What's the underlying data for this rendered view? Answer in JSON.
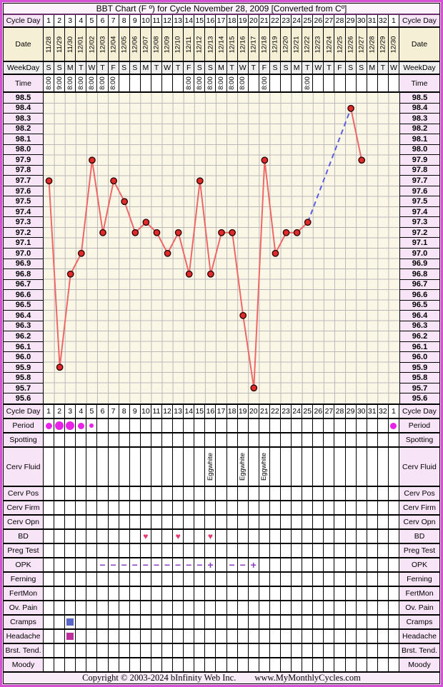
{
  "header": {
    "title": "BBT Chart (F º) for Cycle November 28, 2009  [Converted from Cº]"
  },
  "header_rows": [
    {
      "key": "cycle_day",
      "label": "Cycle Day"
    },
    {
      "key": "date",
      "label": "Date"
    },
    {
      "key": "weekday",
      "label": "WeekDay"
    },
    {
      "key": "time",
      "label": "Time"
    }
  ],
  "columns": {
    "cycle_days": [
      "1",
      "2",
      "3",
      "4",
      "5",
      "6",
      "7",
      "8",
      "9",
      "10",
      "11",
      "12",
      "13",
      "14",
      "15",
      "16",
      "17",
      "18",
      "19",
      "20",
      "21",
      "22",
      "23",
      "24",
      "25",
      "26",
      "27",
      "28",
      "29",
      "30",
      "31",
      "32",
      "1"
    ],
    "dates": [
      "11/28",
      "11/29",
      "11/30",
      "12/01",
      "12/02",
      "12/03",
      "12/04",
      "12/05",
      "12/06",
      "12/07",
      "12/08",
      "12/09",
      "12/10",
      "12/11",
      "12/12",
      "12/13",
      "12/14",
      "12/15",
      "12/16",
      "12/17",
      "12/18",
      "12/19",
      "12/20",
      "12/21",
      "12/22",
      "12/23",
      "12/24",
      "12/25",
      "12/26",
      "12/27",
      "12/28",
      "12/29",
      "12/30"
    ],
    "weekdays": [
      "S",
      "S",
      "M",
      "T",
      "W",
      "T",
      "F",
      "S",
      "S",
      "M",
      "T",
      "W",
      "T",
      "F",
      "S",
      "S",
      "M",
      "T",
      "W",
      "T",
      "F",
      "S",
      "S",
      "M",
      "T",
      "W",
      "T",
      "F",
      "S",
      "S",
      "M",
      "T",
      "W"
    ],
    "times": [
      "8:00",
      "9:00",
      "8:00",
      "8:00",
      "8:00",
      "8:00",
      "8:00",
      "",
      "",
      "",
      "",
      "",
      "",
      "8:00",
      "8:00",
      "8:00",
      "8:00",
      "8:00",
      "8:00",
      "",
      "8:00",
      "",
      "",
      "",
      "8:00",
      "",
      "",
      "",
      "",
      "",
      "",
      "",
      ""
    ]
  },
  "chart_data": {
    "type": "line",
    "title": "BBT Chart (F º) for Cycle November 28, 2009",
    "x_axis": "Cycle Day",
    "ylim": [
      95.6,
      98.5
    ],
    "ytick_step": 0.1,
    "grid": true,
    "yticks": [
      "98.5",
      "98.4",
      "98.3",
      "98.2",
      "98.1",
      "98.0",
      "97.9",
      "97.8",
      "97.7",
      "97.6",
      "97.5",
      "97.4",
      "97.3",
      "97.2",
      "97.1",
      "97.0",
      "96.9",
      "96.8",
      "96.7",
      "96.6",
      "96.5",
      "96.4",
      "96.3",
      "96.2",
      "96.1",
      "96.0",
      "95.9",
      "95.8",
      "95.7",
      "95.6"
    ],
    "x_days": [
      1,
      2,
      3,
      4,
      5,
      6,
      7,
      8,
      9,
      10,
      11,
      12,
      13,
      14,
      15,
      16,
      17,
      18,
      19,
      20,
      21,
      22,
      23,
      24,
      25,
      29,
      30
    ],
    "temps_f": [
      97.7,
      95.9,
      96.8,
      97.0,
      97.9,
      97.2,
      97.7,
      97.5,
      97.2,
      97.3,
      97.2,
      97.0,
      97.2,
      96.8,
      97.7,
      96.8,
      97.2,
      97.2,
      96.4,
      95.7,
      97.9,
      97.0,
      97.2,
      97.2,
      97.3,
      98.4,
      97.9
    ],
    "estimated_segment": {
      "from_day": 25,
      "to_day": 29,
      "style": "dashed-blue"
    }
  },
  "bottom_rows": [
    {
      "key": "cycle_day2",
      "label": "Cycle Day"
    },
    {
      "key": "period",
      "label": "Period"
    },
    {
      "key": "spotting",
      "label": "Spotting"
    },
    {
      "key": "cerv_fluid",
      "label": "Cerv Fluid"
    },
    {
      "key": "cerv_pos",
      "label": "Cerv Pos"
    },
    {
      "key": "cerv_firm",
      "label": "Cerv Firm"
    },
    {
      "key": "cerv_opn",
      "label": "Cerv Opn"
    },
    {
      "key": "bd",
      "label": "BD"
    },
    {
      "key": "preg_test",
      "label": "Preg Test"
    },
    {
      "key": "opk",
      "label": "OPK"
    },
    {
      "key": "ferning",
      "label": "Ferning"
    },
    {
      "key": "fertmon",
      "label": "FertMon"
    },
    {
      "key": "ov_pain",
      "label": "Ov. Pain"
    },
    {
      "key": "cramps",
      "label": "Cramps"
    },
    {
      "key": "headache",
      "label": "Headache"
    },
    {
      "key": "brst_tend",
      "label": "Brst. Tend."
    },
    {
      "key": "moody",
      "label": "Moody"
    }
  ],
  "annotations": {
    "period": [
      {
        "col": 1,
        "size": "m"
      },
      {
        "col": 2,
        "size": "l"
      },
      {
        "col": 3,
        "size": "l"
      },
      {
        "col": 4,
        "size": "m"
      },
      {
        "col": 5,
        "size": "s"
      },
      {
        "col": 33,
        "size": "m"
      }
    ],
    "cerv_fluid": [
      {
        "col": 16,
        "text": "Eggwhite"
      },
      {
        "col": 19,
        "text": "Eggwhite"
      },
      {
        "col": 21,
        "text": "Eggwhite"
      }
    ],
    "bd": [
      {
        "col": 10,
        "symbol": "♥"
      },
      {
        "col": 13,
        "symbol": "♥"
      },
      {
        "col": 16,
        "symbol": "♥"
      }
    ],
    "opk": [
      {
        "col": 6,
        "symbol": "−"
      },
      {
        "col": 7,
        "symbol": "−"
      },
      {
        "col": 8,
        "symbol": "−"
      },
      {
        "col": 9,
        "symbol": "−"
      },
      {
        "col": 10,
        "symbol": "−"
      },
      {
        "col": 11,
        "symbol": "−"
      },
      {
        "col": 12,
        "symbol": "−"
      },
      {
        "col": 13,
        "symbol": "−"
      },
      {
        "col": 14,
        "symbol": "−"
      },
      {
        "col": 15,
        "symbol": "−"
      },
      {
        "col": 16,
        "symbol": "+"
      },
      {
        "col": 18,
        "symbol": "−"
      },
      {
        "col": 19,
        "symbol": "−"
      },
      {
        "col": 20,
        "symbol": "+"
      }
    ],
    "cramps": [
      {
        "col": 3
      }
    ],
    "headache": [
      {
        "col": 3
      }
    ]
  },
  "footer": {
    "copyright": "Copyright © 2003-2024 bInfinity Web Inc.",
    "site": "www.MyMonthlyCycles.com"
  },
  "colors": {
    "frame_border": "#D44FD4",
    "title_rule": "#6B2F6B",
    "label_bg": "#F7E4F7",
    "date_bg": "#F5EFD6",
    "weekday_bg": "#EFEFEF",
    "chart_bg": "#FBF7E7",
    "grid_line": "#B9B9B9",
    "temp_line": "#EF6666",
    "temp_point": "#E32A2A",
    "temp_point_edge": "#2B0505",
    "coverline_dashed": "#5C5CE0",
    "period_dot": "#E822E8",
    "bd_heart": "#E8396E",
    "opk_symbol": "#8A3FC2",
    "cramps_square": "#5B67C8",
    "headache_square": "#BE2F9E"
  }
}
